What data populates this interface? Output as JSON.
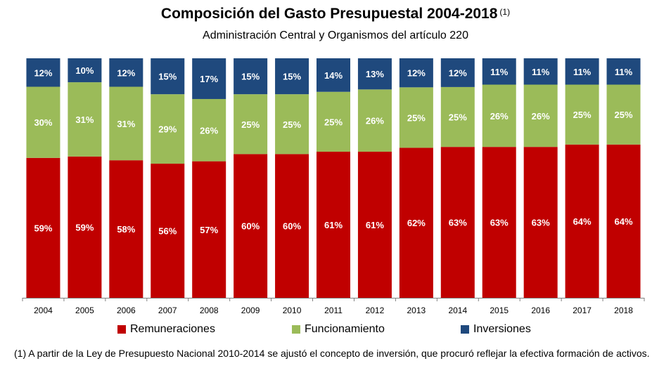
{
  "chart_title": "Composición del Gasto Presupuestal 2004-2018",
  "chart_title_note": "(1)",
  "chart_subtitle": "Administración Central y Organismos del artículo 220",
  "footnote": "(1) A partir de la Ley de Presupuesto Nacional 2010-2014 se ajustó el concepto de inversión, que procuró reflejar la efectiva formación de activos.",
  "colors": {
    "Remuneraciones": "#c00000",
    "Funcionamiento": "#9bbb59",
    "Inversiones": "#1f497d"
  },
  "chart_data": {
    "type": "bar",
    "stacked": true,
    "title": "Composición del Gasto Presupuestal 2004-2018",
    "subtitle": "Administración Central y Organismos del artículo 220",
    "xlabel": "",
    "ylabel": "",
    "ylim": [
      0,
      100
    ],
    "grid": false,
    "legend_position": "bottom",
    "categories": [
      "2004",
      "2005",
      "2006",
      "2007",
      "2008",
      "2009",
      "2010",
      "2011",
      "2012",
      "2013",
      "2014",
      "2015",
      "2016",
      "2017",
      "2018"
    ],
    "series": [
      {
        "name": "Remuneraciones",
        "values": [
          59,
          59,
          58,
          56,
          57,
          60,
          60,
          61,
          61,
          62,
          63,
          63,
          63,
          64,
          64
        ]
      },
      {
        "name": "Funcionamiento",
        "values": [
          30,
          31,
          31,
          29,
          26,
          25,
          25,
          25,
          26,
          25,
          25,
          26,
          26,
          25,
          25
        ]
      },
      {
        "name": "Inversiones",
        "values": [
          12,
          10,
          12,
          15,
          17,
          15,
          15,
          14,
          13,
          12,
          12,
          11,
          11,
          11,
          11
        ]
      }
    ]
  }
}
